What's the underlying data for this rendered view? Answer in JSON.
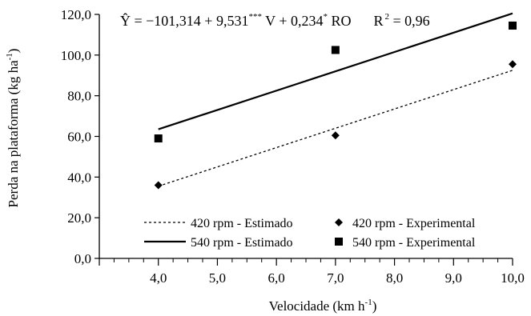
{
  "chart_data": {
    "type": "scatter",
    "title": "",
    "equation": {
      "y_hat": "Ŷ",
      "lhs_eq": " = −101,314 + 9,531",
      "stars_v": "***",
      "v_part": " V + 0,234",
      "star_ro": "*",
      "ro_part": " RO",
      "r2_label": "R",
      "r2_exp": "2",
      "r2_value": " = 0,96"
    },
    "xlabel": {
      "main": "Velocidade (km h",
      "exp": "-1",
      "close": ")"
    },
    "ylabel": {
      "main": "Perda na plataforma (kg ha",
      "exp": "-1",
      "close": ")"
    },
    "xlim": [
      3.0,
      10.0
    ],
    "ylim": [
      0,
      120
    ],
    "xticks": [
      4.0,
      5.0,
      6.0,
      7.0,
      8.0,
      9.0,
      10.0
    ],
    "xtick_labels": [
      "4,0",
      "5,0",
      "6,0",
      "7,0",
      "8,0",
      "9,0",
      "10,0"
    ],
    "yticks": [
      0,
      20,
      40,
      60,
      80,
      100,
      120
    ],
    "ytick_labels": [
      "0,0",
      "20,0",
      "40,0",
      "60,0",
      "80,0",
      "100,0",
      "120,0"
    ],
    "x_minor_step": 0.25,
    "legend_position": "bottom-right",
    "series": [
      {
        "name": "420 rpm - Estimado",
        "kind": "line",
        "style": "dotted",
        "x": [
          4.0,
          10.0
        ],
        "y": [
          35.5,
          92.5
        ]
      },
      {
        "name": "540 rpm - Estimado",
        "kind": "line",
        "style": "solid",
        "x": [
          4.0,
          10.0
        ],
        "y": [
          63.5,
          120.5
        ]
      },
      {
        "name": "420 rpm - Experimental",
        "kind": "points",
        "marker": "diamond",
        "x": [
          4.0,
          7.0,
          10.0
        ],
        "y": [
          36.0,
          60.5,
          95.5
        ]
      },
      {
        "name": "540 rpm - Experimental",
        "kind": "points",
        "marker": "square",
        "x": [
          4.0,
          7.0,
          10.0
        ],
        "y": [
          59.0,
          102.5,
          114.5
        ]
      }
    ]
  }
}
